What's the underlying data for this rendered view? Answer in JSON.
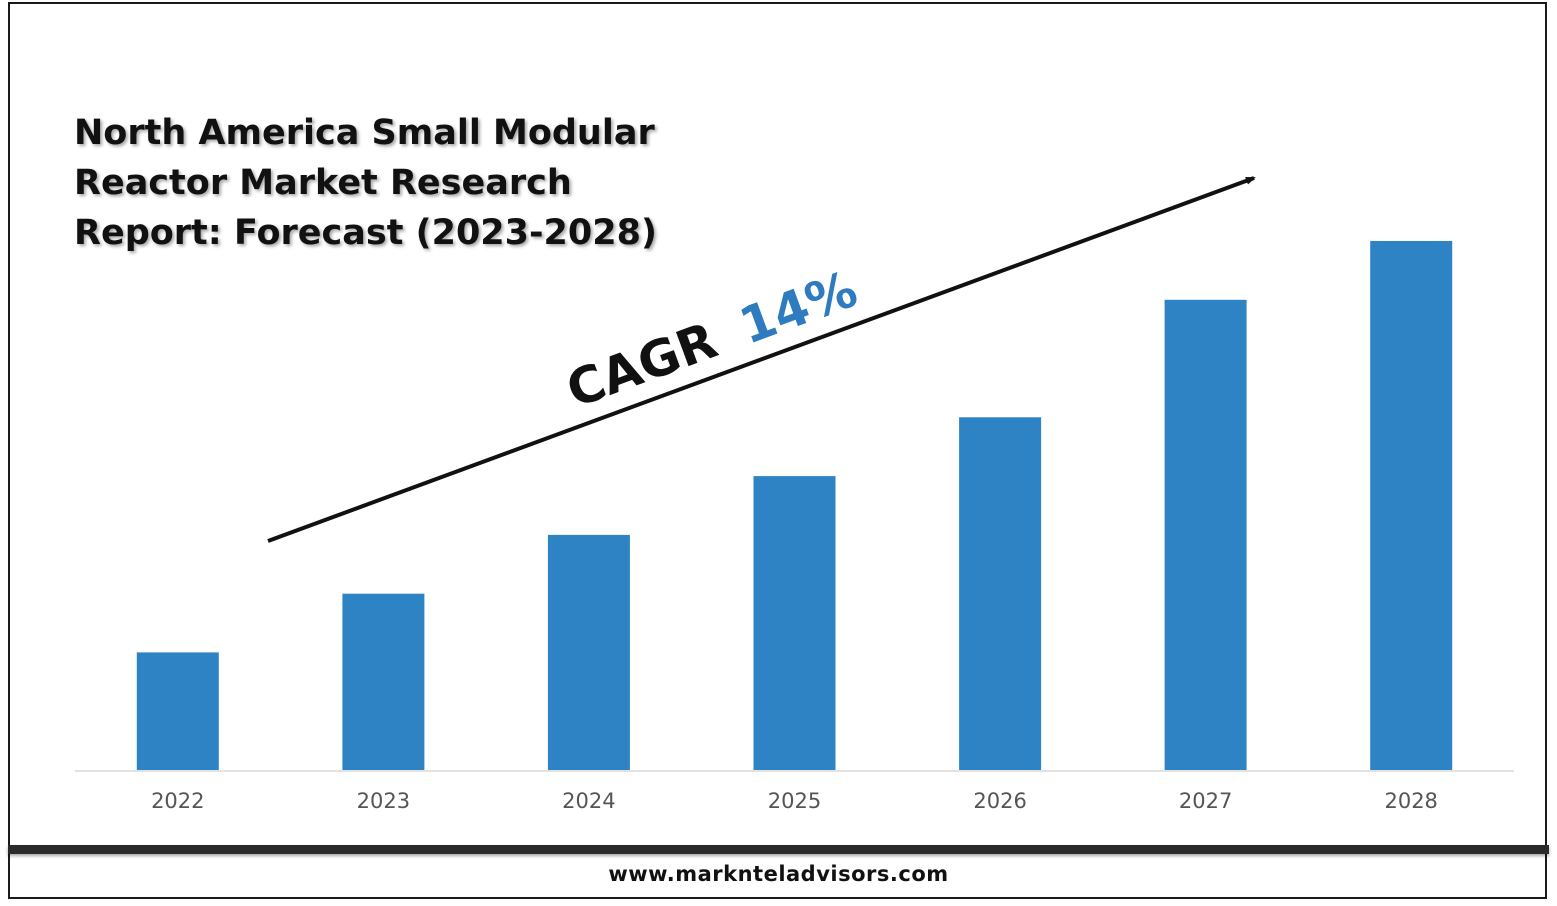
{
  "title": "North America Small Modular Reactor Market Research Report: Forecast (2023-2028)",
  "cagr": {
    "label": "CAGR",
    "value": "14%"
  },
  "footer": {
    "website": "www.marknteladvisors.com"
  },
  "colors": {
    "bar": "#2e83c4",
    "cagr_value": "#2e7bc0",
    "text": "#111111",
    "axis": "#d9d9d9"
  },
  "chart_data": {
    "type": "bar",
    "title": "North America Small Modular Reactor Market Research Report: Forecast (2023-2028)",
    "xlabel": "",
    "ylabel": "",
    "categories": [
      "2022",
      "2023",
      "2024",
      "2025",
      "2026",
      "2027",
      "2028"
    ],
    "values": [
      1.0,
      1.5,
      2.0,
      2.5,
      3.0,
      4.0,
      4.5
    ],
    "value_note_unit": "relative",
    "ylim": [
      0,
      4.5
    ],
    "grid": false,
    "legend": "none",
    "annotation": "CAGR 14%"
  }
}
